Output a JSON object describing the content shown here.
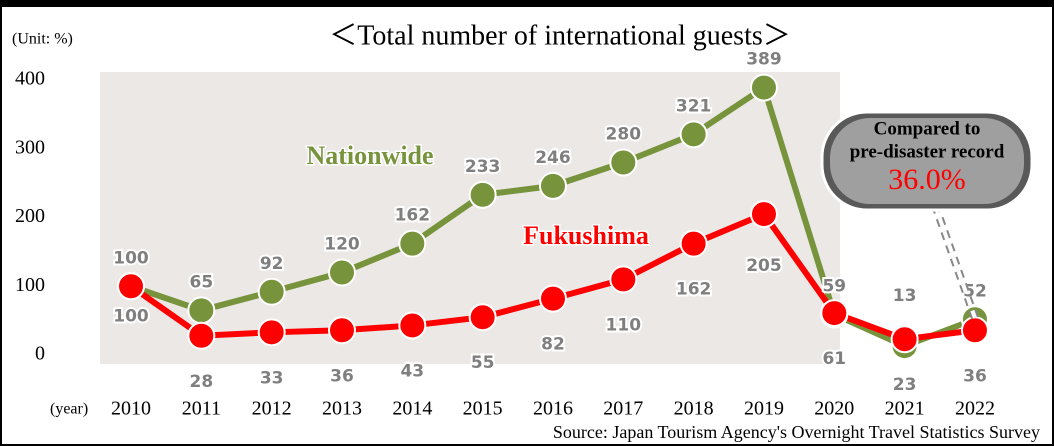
{
  "chart_data": {
    "type": "line",
    "title": "＜Total number of international guests＞",
    "y_unit_label": "(Unit: %)",
    "x_unit_label": "(year)",
    "source": "Source: Japan Tourism Agency's Overnight Travel Statistics Survey",
    "categories": [
      "2010",
      "2011",
      "2012",
      "2013",
      "2014",
      "2015",
      "2016",
      "2017",
      "2018",
      "2019",
      "2020",
      "2021",
      "2022"
    ],
    "series": [
      {
        "name": "Nationwide",
        "color": "#77933c",
        "values": [
          100,
          65,
          92,
          120,
          162,
          233,
          246,
          280,
          321,
          389,
          59,
          13,
          52
        ]
      },
      {
        "name": "Fukushima",
        "color": "#ff0000",
        "values": [
          100,
          28,
          33,
          36,
          43,
          55,
          82,
          110,
          162,
          205,
          61,
          23,
          36
        ]
      }
    ],
    "ylim": [
      0,
      400
    ],
    "yticks": [
      0,
      100,
      200,
      300,
      400
    ],
    "annotation": {
      "lines": [
        "Compared to",
        "pre-disaster record"
      ],
      "highlight": "36.0%"
    }
  }
}
